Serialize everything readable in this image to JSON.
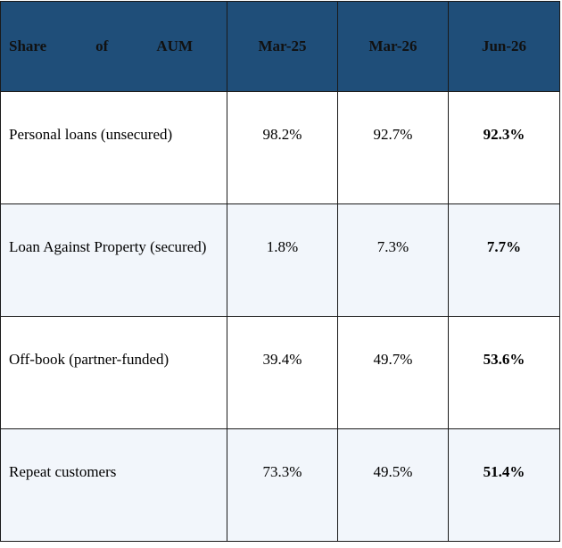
{
  "table": {
    "header": {
      "label": "Share of AUM",
      "columns": [
        "Mar-25",
        "Mar-26",
        "Jun-26"
      ]
    },
    "rows": [
      {
        "label": "Personal loans (unsecured)",
        "values": [
          "98.2%",
          "92.7%",
          "92.3%"
        ]
      },
      {
        "label": "Loan Against Property (secured)",
        "values": [
          "1.8%",
          "7.3%",
          "7.7%"
        ]
      },
      {
        "label": "Off-book (partner-funded)",
        "values": [
          "39.4%",
          "49.7%",
          "53.6%"
        ]
      },
      {
        "label": "Repeat customers",
        "values": [
          "73.3%",
          "49.5%",
          "51.4%"
        ]
      }
    ]
  },
  "colors": {
    "header_background": "#1f4e79",
    "alternate_row_background": "#f2f6fb"
  }
}
